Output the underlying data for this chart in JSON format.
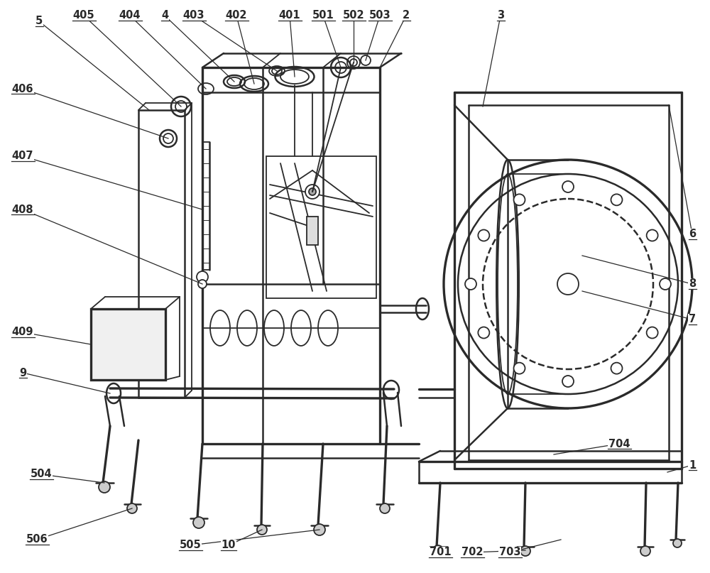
{
  "bg_color": "#ffffff",
  "lc": "#2a2a2a",
  "lw": 1.3,
  "lw2": 1.8,
  "lw3": 2.4,
  "fs": 10.5,
  "figsize": [
    10.0,
    8.07
  ],
  "dpi": 100
}
